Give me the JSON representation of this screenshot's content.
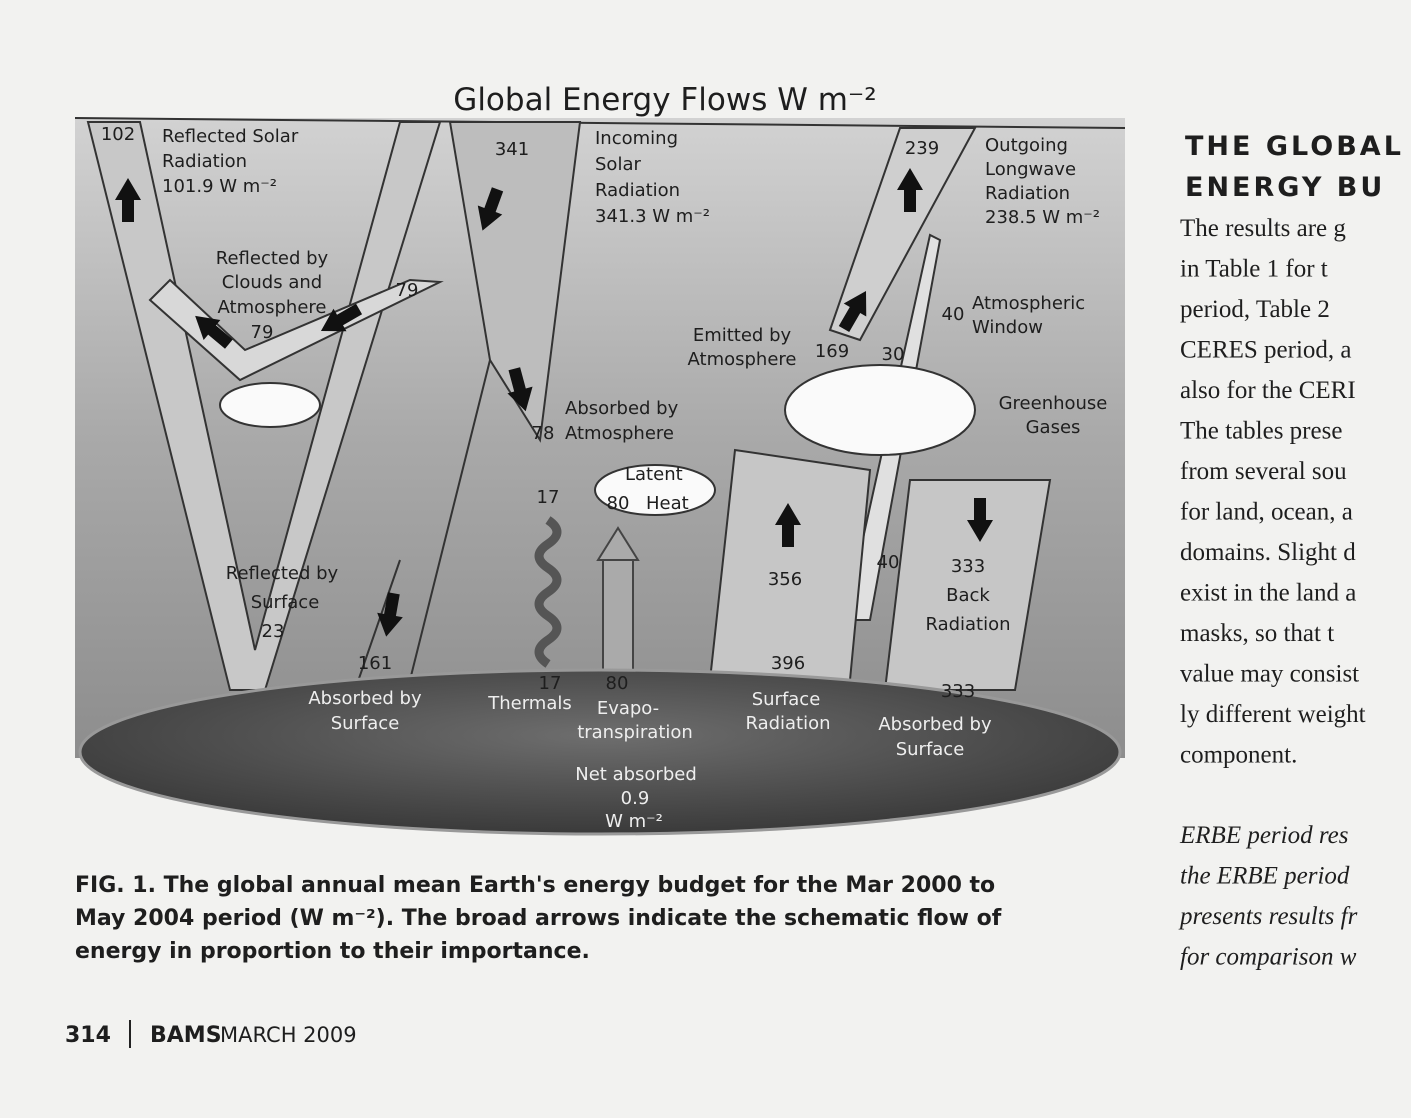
{
  "figure": {
    "title": "Global Energy Flows W m⁻²",
    "labels": [
      [
        "102"
      ],
      [
        "Reflected Solar",
        "Radiation",
        "101.9 W m⁻²"
      ],
      [
        "341"
      ],
      [
        "Incoming",
        "Solar",
        "Radiation",
        "341.3 W m⁻²"
      ],
      [
        "239"
      ],
      [
        "Outgoing",
        "Longwave",
        "Radiation",
        "238.5 W m⁻²"
      ],
      [
        "Reflected by",
        "Clouds and",
        "Atmosphere",
        "79"
      ],
      [
        "79"
      ],
      [
        "Emitted by",
        "Atmosphere"
      ],
      [
        "169"
      ],
      [
        "30"
      ],
      [
        "40"
      ],
      [
        "Atmospheric",
        "Window"
      ],
      [
        "Absorbed by",
        "Atmosphere"
      ],
      [
        "78"
      ],
      [
        "Greenhouse",
        "Gases"
      ],
      [
        "Latent",
        "Heat"
      ],
      [
        "80"
      ],
      [
        "17"
      ],
      [
        "356"
      ],
      [
        "40"
      ],
      [
        "333",
        "Back",
        "Radiation"
      ],
      [
        "Reflected by",
        "Surface",
        "23"
      ],
      [
        "161"
      ],
      [
        "396"
      ],
      [
        "17"
      ],
      [
        "80"
      ],
      [
        "333"
      ],
      [
        "Absorbed by",
        "Surface"
      ],
      [
        "Thermals"
      ],
      [
        "Evapo-",
        "transpiration"
      ],
      [
        "Surface",
        "Radiation"
      ],
      [
        "Absorbed by",
        "Surface"
      ],
      [
        "Net absorbed",
        "0.9",
        "W m⁻²"
      ]
    ],
    "caption": [
      "FIG. 1. The global annual mean Earth's energy budget for the Mar 2000 to",
      "May 2004 period (W m⁻²). The broad arrows indicate the schematic flow of",
      "energy in proportion to their importance."
    ]
  },
  "column": {
    "heading": [
      "THE GLOBAL",
      "ENERGY BU"
    ],
    "paragraphs": [
      [
        "The results are g",
        "in Table 1 for t",
        "period, Table 2",
        "CERES period, a",
        "also for the CERI",
        "The tables prese",
        "from several sou",
        "for land, ocean, a",
        "domains. Slight d",
        "exist in the land a",
        "masks, so that t",
        "value may consist",
        "ly different weight",
        "component."
      ],
      [
        "ERBE period res",
        "the ERBE period",
        "presents results fr",
        "for comparison w"
      ]
    ]
  },
  "footer": {
    "page": "314",
    "journal": "BAMS",
    "date": "MARCH 2009"
  }
}
